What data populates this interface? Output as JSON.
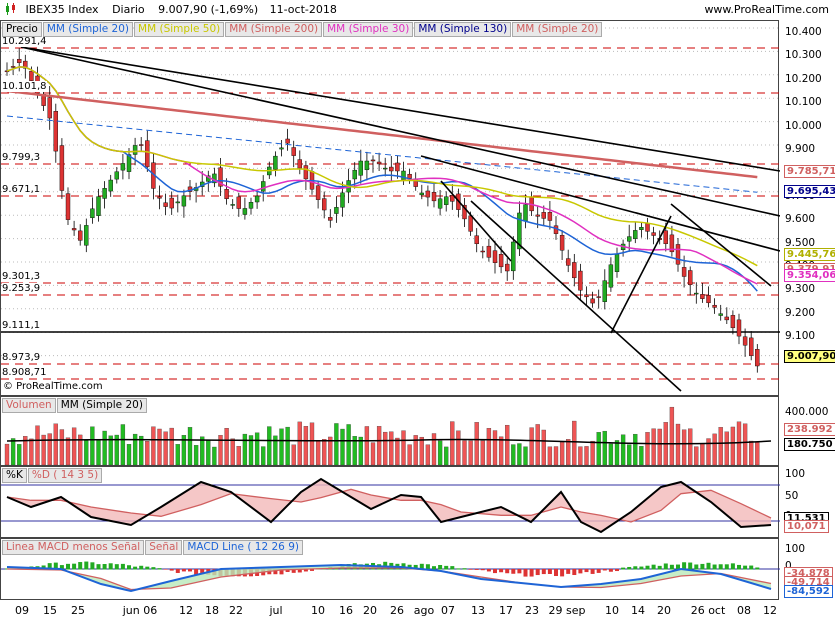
{
  "header": {
    "instrument": "IBEX35 Index",
    "period": "Diario",
    "quote": "9.007,90 (-1,69%)",
    "date": "11-oct-2018",
    "site": "www.ProRealTime.com",
    "copyright": "© ProRealTime.com"
  },
  "price_panel": {
    "legend": [
      {
        "label": "Precio",
        "color": "#000000"
      },
      {
        "label": "MM (Simple 20)",
        "color": "#1e64d6"
      },
      {
        "label": "MM (Simple 50)",
        "color": "#c8c800"
      },
      {
        "label": "MM (Simple 200)",
        "color": "#d06060"
      },
      {
        "label": "MM (Simple 30)",
        "color": "#e030c0"
      },
      {
        "label": "MM (Simple 130)",
        "color": "#00008b"
      },
      {
        "label": "MM (Simple 20)",
        "color": "#d06060"
      }
    ],
    "y_ticks": [
      "10.400",
      "10.300",
      "10.200",
      "10.100",
      "10.000",
      "9.900",
      "9.800",
      "9.700",
      "9.600",
      "9.500",
      "9.400",
      "9.300",
      "9.200",
      "9.100",
      "9.000"
    ],
    "levels": [
      "10.291,4",
      "10.101,8",
      "9.799,3",
      "9.671,1",
      "9.301,3",
      "9.253,9",
      "9.111,1",
      "8.973,9",
      "8.908,71"
    ],
    "tags": [
      {
        "text": "9.785,71",
        "color": "#d06060"
      },
      {
        "text": "9.695,43",
        "color": "#00008b"
      },
      {
        "text": "9.445,76",
        "color": "#b0b000"
      },
      {
        "text": "9.379,91",
        "color": "#d06060"
      },
      {
        "text": "9.354,06",
        "color": "#e030c0"
      },
      {
        "text": "9.007,90",
        "color": "#000000"
      }
    ]
  },
  "volume_panel": {
    "legend": [
      {
        "label": "Volumen",
        "color": "#d06060"
      },
      {
        "label": "MM (Simple 20)",
        "color": "#000000"
      }
    ],
    "y_ticks": [
      "400.000"
    ],
    "tags": [
      {
        "text": "238.992",
        "color": "#d06060"
      },
      {
        "text": "180.750",
        "color": "#000000"
      }
    ]
  },
  "stoch_panel": {
    "legend": [
      {
        "label": "%K",
        "color": "#000000"
      },
      {
        "label": "%D ( 14 3 5)",
        "color": "#d06060"
      }
    ],
    "y_ticks": [
      "100",
      "50",
      "0"
    ],
    "tags": [
      {
        "text": "11,531",
        "color": "#000000"
      },
      {
        "text": "10,071",
        "color": "#d06060"
      }
    ]
  },
  "macd_panel": {
    "legend": [
      {
        "label": "Linea MACD menos Señal",
        "color": "#d06060"
      },
      {
        "label": "Señal",
        "color": "#d06060"
      },
      {
        "label": "MACD Line ( 12 26 9)",
        "color": "#1e64d6"
      }
    ],
    "y_ticks": [
      "100",
      "0"
    ],
    "tags": [
      {
        "text": "-34,878",
        "color": "#d06060"
      },
      {
        "text": "-49,714",
        "color": "#d06060"
      },
      {
        "text": "-84,592",
        "color": "#1e64d6"
      }
    ]
  },
  "x_axis": [
    "09",
    "15",
    "25",
    "jun 06",
    "12",
    "18",
    "22",
    "jul",
    "10",
    "16",
    "20",
    "26",
    "ago",
    "07",
    "13",
    "17",
    "23",
    "29 sep",
    "10",
    "14",
    "20",
    "26 oct",
    "08",
    "12"
  ]
}
